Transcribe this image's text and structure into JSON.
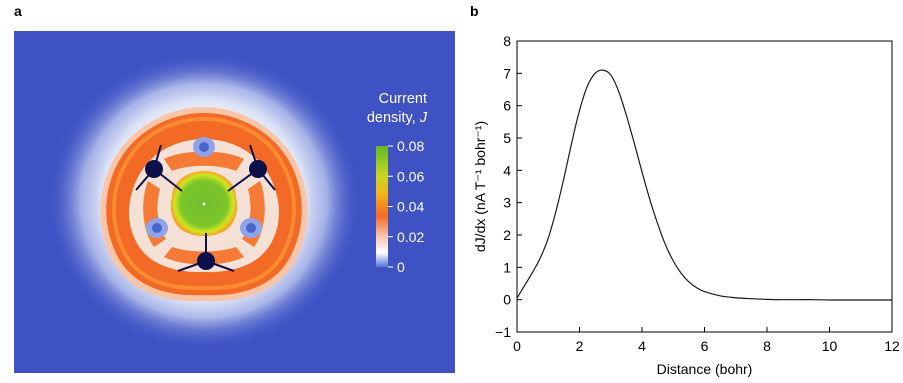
{
  "panel_a": {
    "label": "a",
    "colorbar": {
      "title_line1": "Current",
      "title_line2": "density, ",
      "title_symbol": "J",
      "ticks": [
        "0.08",
        "0.06",
        "0.04",
        "0.02",
        "0"
      ],
      "tick_values": [
        0.08,
        0.06,
        0.04,
        0.02,
        0
      ],
      "range": [
        0,
        0.08
      ]
    },
    "colors": {
      "background": "#3e52c4",
      "halo": "#ffffff",
      "ring": "#f26a25",
      "ring_outer": "#fb8b33",
      "ring_inner_white": "#f5e0d5",
      "center": "#6fbf2c",
      "center_halo": "#cfe51f",
      "atom": "#0d1049",
      "colorbar_stops": [
        "#5673d8",
        "#ffffff",
        "#f26a25",
        "#f0d21a",
        "#5fb82a"
      ]
    },
    "atom_count": 3
  },
  "chart_data": {
    "type": "line",
    "panel_label": "b",
    "xlabel": "Distance (bohr)",
    "ylabel": "dJ/dx (nA T⁻¹ bohr⁻¹)",
    "xlim": [
      0,
      12
    ],
    "ylim": [
      -1,
      8
    ],
    "x_ticks": [
      0,
      2,
      4,
      6,
      8,
      10,
      12
    ],
    "y_ticks": [
      -1,
      0,
      1,
      2,
      3,
      4,
      5,
      6,
      7,
      8
    ],
    "x_tick_labels": [
      "0",
      "2",
      "4",
      "6",
      "8",
      "10",
      "12"
    ],
    "y_tick_labels": [
      "−1",
      "0",
      "1",
      "2",
      "3",
      "4",
      "5",
      "6",
      "7",
      "8"
    ],
    "grid": false,
    "line_color": "#1a1a1a",
    "series": [
      {
        "x": [
          0,
          0.25,
          0.5,
          0.75,
          1.0,
          1.25,
          1.5,
          1.75,
          2.0,
          2.25,
          2.5,
          2.75,
          3.0,
          3.25,
          3.5,
          3.75,
          4.0,
          4.25,
          4.5,
          4.75,
          5.0,
          5.25,
          5.5,
          5.75,
          6.0,
          6.5,
          7.0,
          7.5,
          8.0,
          8.5,
          9.0,
          9.5,
          10.0,
          10.5,
          11.0,
          11.5,
          12.0
        ],
        "y": [
          0.05,
          0.45,
          0.85,
          1.3,
          1.9,
          2.75,
          3.75,
          4.85,
          5.85,
          6.6,
          7.0,
          7.1,
          6.95,
          6.45,
          5.7,
          4.85,
          3.95,
          3.1,
          2.35,
          1.7,
          1.2,
          0.82,
          0.55,
          0.37,
          0.25,
          0.12,
          0.06,
          0.03,
          0.01,
          0.0,
          0.0,
          0.0,
          -0.01,
          -0.01,
          -0.01,
          -0.01,
          -0.01
        ]
      }
    ]
  }
}
